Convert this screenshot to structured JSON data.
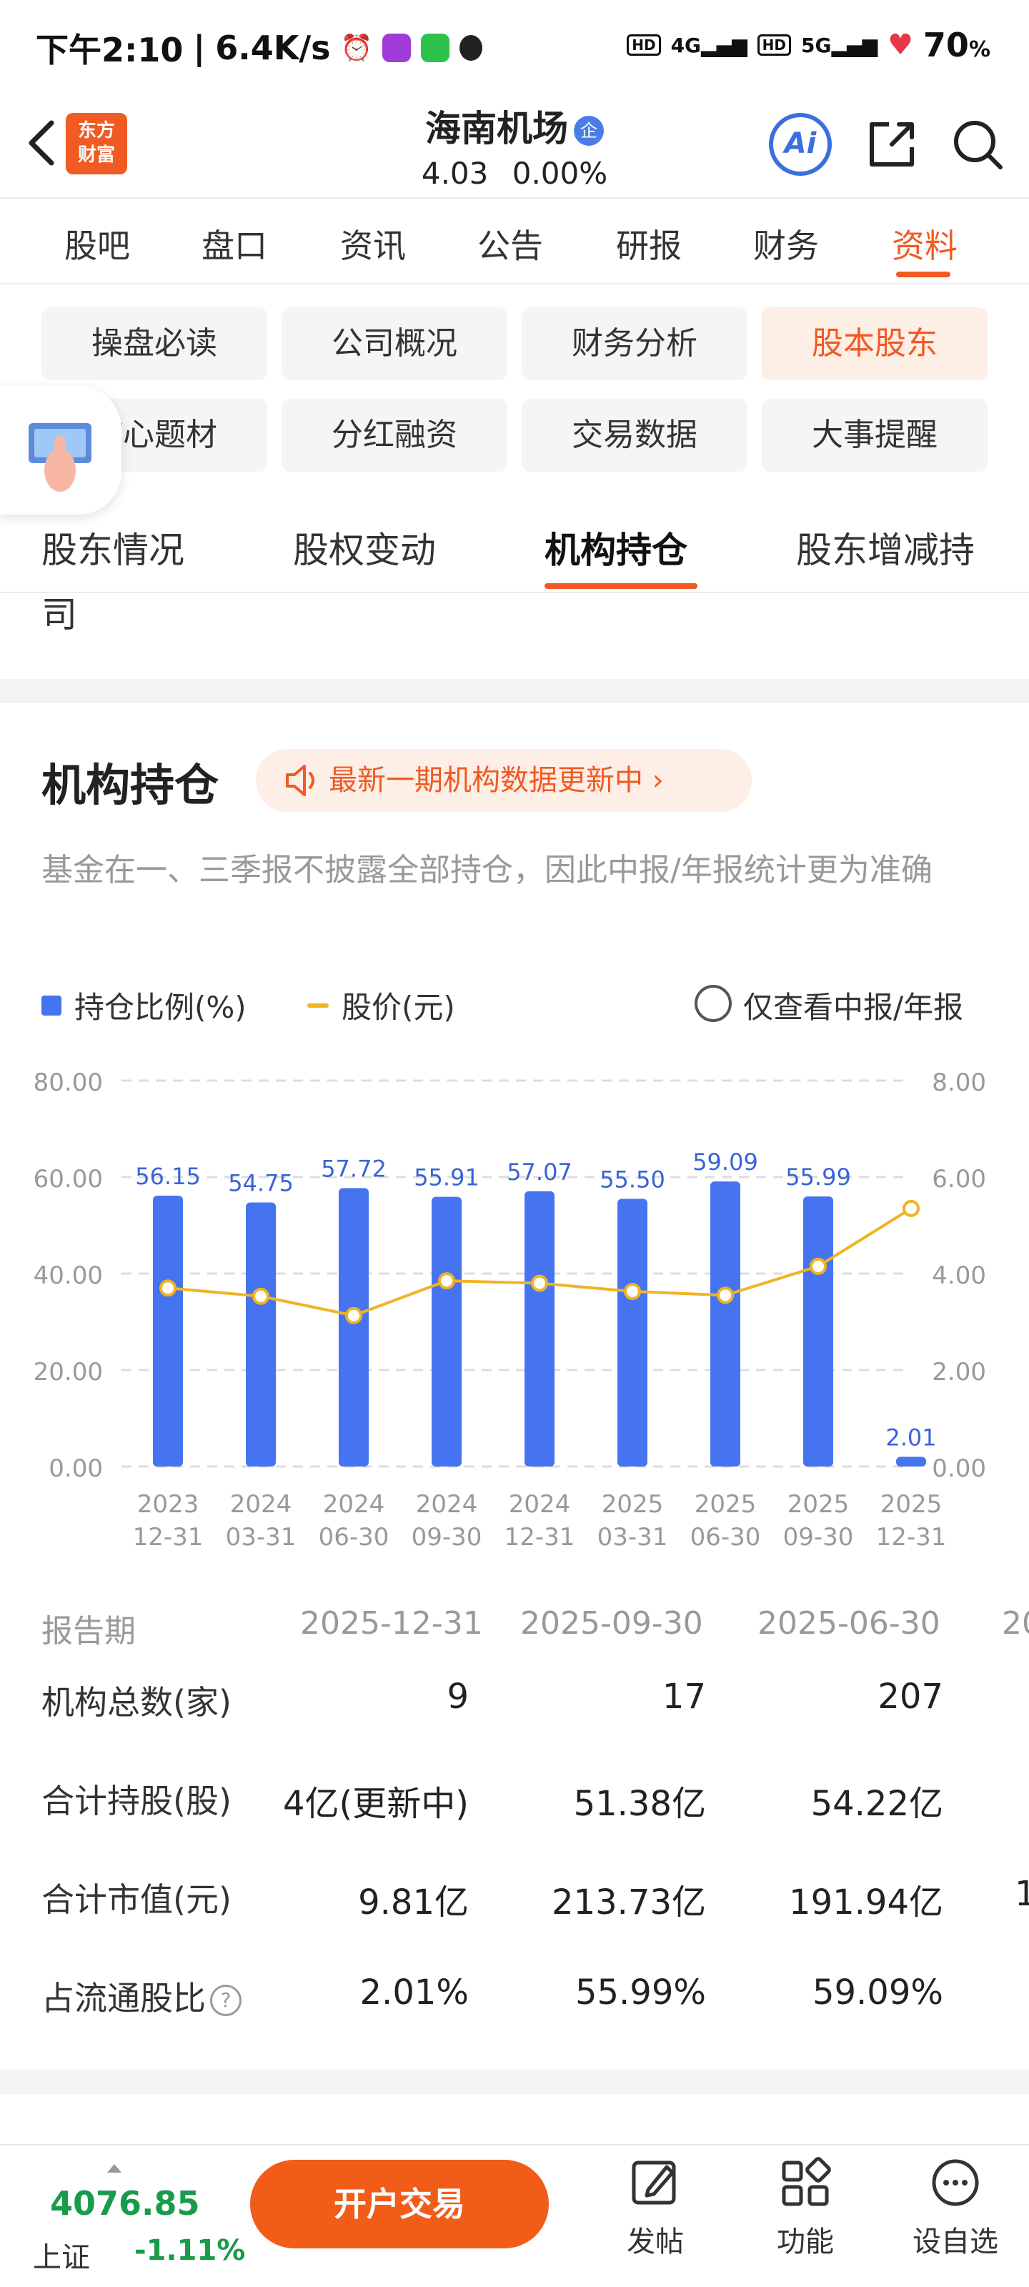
{
  "status_bar": {
    "time": "下午2:10",
    "speed": "6.4K/s",
    "net1": "4G",
    "net2": "5G",
    "battery": "70",
    "battery_unit": "%"
  },
  "header": {
    "logo_line1": "东方",
    "logo_line2": "财富",
    "stock_name": "海南机场",
    "badge": "企",
    "price": "4.03",
    "change": "0.00%",
    "ai_label": "Ai"
  },
  "main_tabs": [
    "股吧",
    "盘口",
    "资讯",
    "公告",
    "研报",
    "财务",
    "资料"
  ],
  "sub_chips": [
    "操盘必读",
    "公司概况",
    "财务分析",
    "股本股东",
    "核心题材",
    "分红融资",
    "交易数据",
    "大事提醒"
  ],
  "section_tabs": [
    "股东情况",
    "股权变动",
    "机构持仓",
    "股东增减持"
  ],
  "section_overflow": "司",
  "card": {
    "title": "机构持仓",
    "notice": "最新一期机构数据更新中 ›",
    "note": "基金在一、三季报不披露全部持仓，因此中报/年报统计更为准确"
  },
  "legend": {
    "bar": "持仓比例(%)",
    "line": "股价(元)",
    "filter": "仅查看中报/年报"
  },
  "chart_data": {
    "type": "bar",
    "categories": [
      "2023\n12-31",
      "2024\n03-31",
      "2024\n06-30",
      "2024\n09-30",
      "2024\n12-31",
      "2025\n03-31",
      "2025\n06-30",
      "2025\n09-30",
      "2025\n12-31"
    ],
    "series": [
      {
        "name": "持仓比例(%)",
        "type": "bar",
        "axis": "left",
        "color": "#4674f0",
        "values": [
          56.15,
          54.75,
          57.72,
          55.91,
          57.07,
          55.5,
          59.09,
          55.99,
          2.01
        ]
      },
      {
        "name": "股价(元)",
        "type": "line",
        "axis": "right",
        "color": "#f0b323",
        "values": [
          3.7,
          3.53,
          3.13,
          3.85,
          3.8,
          3.63,
          3.55,
          4.15,
          5.35
        ]
      }
    ],
    "y_left_ticks": [
      "80.00",
      "60.00",
      "40.00",
      "20.00",
      "0.00"
    ],
    "y_right_ticks": [
      "8.00",
      "6.00",
      "4.00",
      "2.00",
      "0.00"
    ],
    "ylim_left": [
      0,
      80
    ],
    "ylim_right": [
      0,
      8
    ],
    "grid": true
  },
  "table": {
    "header_label": "报告期",
    "periods": [
      "2025-12-31",
      "2025-09-30",
      "2025-06-30",
      "20"
    ],
    "rows": [
      {
        "label": "机构总数(家)",
        "values": [
          "9",
          "17",
          "207",
          ""
        ]
      },
      {
        "label": "合计持股(股)",
        "values": [
          "4亿(更新中)",
          "51.38亿",
          "54.22亿",
          ""
        ]
      },
      {
        "label": "合计市值(元)",
        "values": [
          "9.81亿",
          "213.73亿",
          "191.94亿",
          "1"
        ]
      },
      {
        "label": "占流通股比",
        "values": [
          "2.01%",
          "55.99%",
          "59.09%",
          ""
        ]
      }
    ],
    "help_icon": "?"
  },
  "bottom_bar": {
    "index_value": "4076.85",
    "index_name": "上证",
    "index_change": "-1.11%",
    "open_button": "开户交易",
    "tools": [
      "发帖",
      "功能",
      "设自选"
    ]
  },
  "colors": {
    "accent": "#f05a22",
    "bar": "#4674f0",
    "line": "#f0b323",
    "down": "#1a9b4b"
  }
}
